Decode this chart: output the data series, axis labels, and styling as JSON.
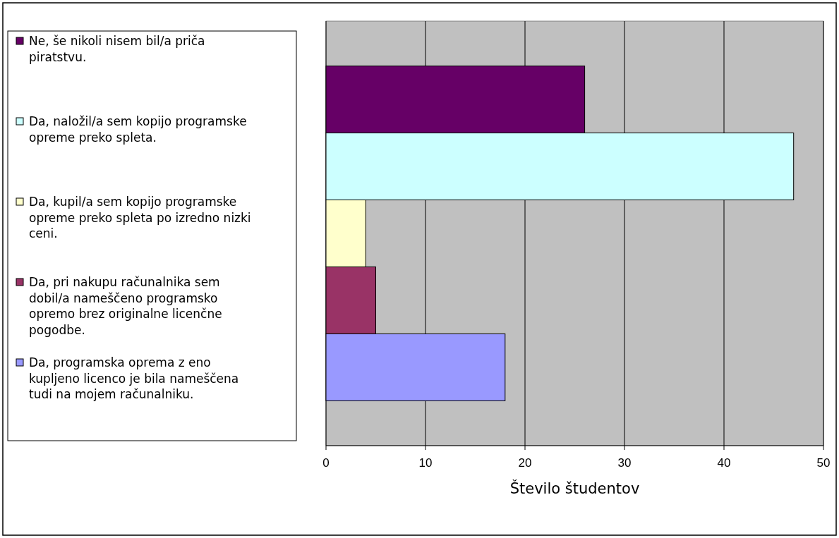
{
  "chart_data": {
    "type": "bar",
    "orientation": "horizontal",
    "xlabel": "Število študentov",
    "categories": [
      null
    ],
    "series": [
      {
        "name": "Ne, še nikoli nisem bil/a priča piratstvu.",
        "color": "#660066",
        "values": [
          26
        ]
      },
      {
        "name": "Da, naložil/a sem kopijo programske opreme preko spleta.",
        "color": "#ccffff",
        "values": [
          47
        ]
      },
      {
        "name": "Da, kupil/a sem kopijo programske opreme preko spleta po izredno nizki ceni.",
        "color": "#ffffcc",
        "values": [
          4
        ]
      },
      {
        "name": "Da, pri nakupu računalnika sem dobil/a nameščeno programsko opremo brez originalne licenčne pogodbe.",
        "color": "#993366",
        "values": [
          5
        ]
      },
      {
        "name": "Da, programska oprema z eno kupljeno licenco je bila nameščena tudi na mojem računalniku.",
        "color": "#9999ff",
        "values": [
          18
        ]
      }
    ],
    "xlim": [
      0,
      50
    ],
    "xticks": [
      0,
      10,
      20,
      30,
      40,
      50
    ],
    "grid": "x",
    "legend": "left"
  }
}
